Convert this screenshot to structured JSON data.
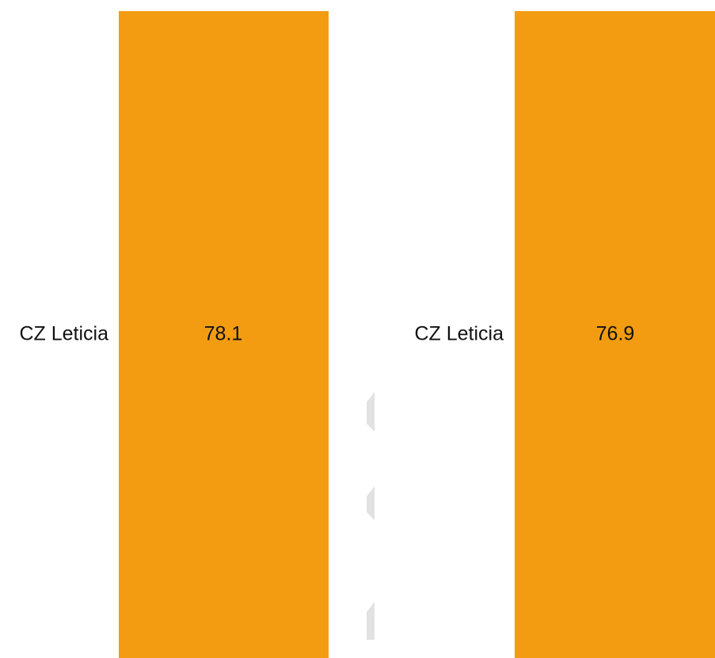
{
  "panels": [
    {
      "label": "CZ Leticia",
      "value": "78.1"
    },
    {
      "label": "CZ Leticia",
      "value": "76.9"
    }
  ]
}
